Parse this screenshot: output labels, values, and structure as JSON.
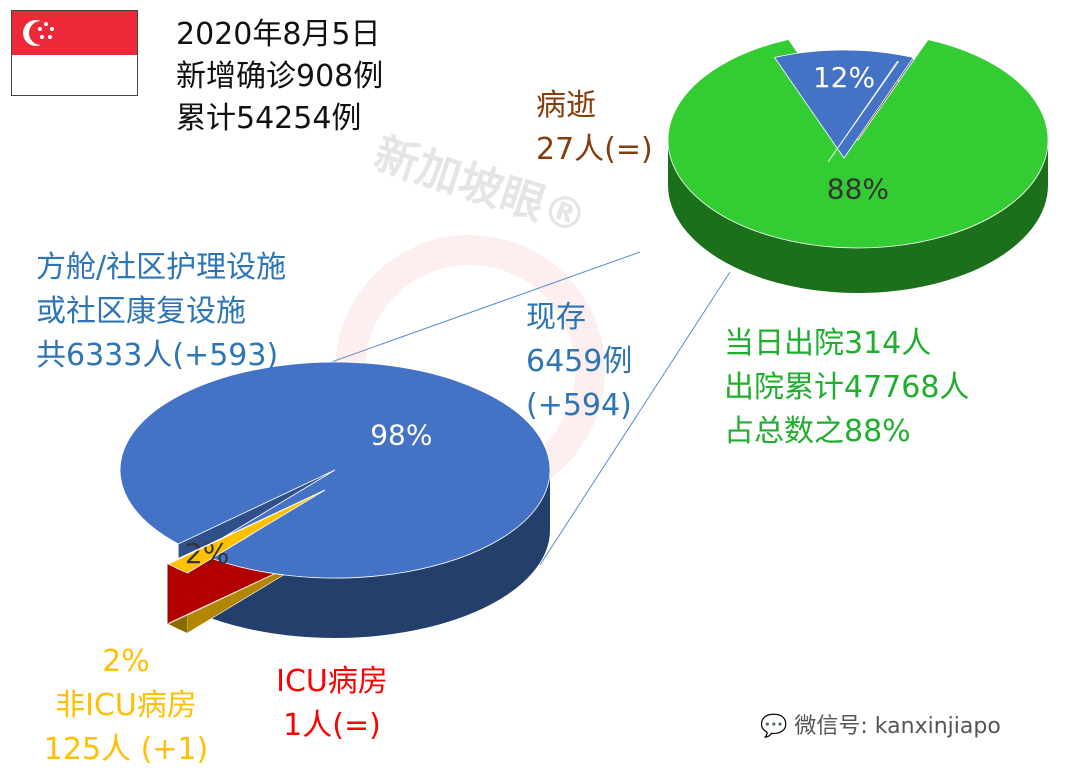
{
  "header": {
    "date": "2020年8月5日",
    "new_cases": "新增确诊908例",
    "total_cases": "累计54254例"
  },
  "flag_icon": "singapore-flag",
  "watermark": "新加坡眼®",
  "labels": {
    "deaths": [
      "病逝",
      "27人(=)"
    ],
    "community": [
      "方舱/社区护理设施",
      "或社区康复设施",
      "共6333人(+593)"
    ],
    "current": [
      "现存",
      "6459例",
      "(+594)"
    ],
    "discharged": [
      "当日出院314人",
      "出院累计47768人",
      "占总数之88%"
    ],
    "non_icu": [
      "2%",
      "非ICU病房",
      "125人 (+1)"
    ],
    "icu": [
      "ICU病房",
      "1人(=)"
    ]
  },
  "footer": {
    "wechat_icon": "wechat-icon",
    "text": "微信号: kanxinjiapo"
  },
  "colors": {
    "green": "#33cc33",
    "blue": "#4472c4",
    "brown": "#7b3f12",
    "yellow": "#ffc000",
    "red": "#ff0000",
    "community_text": "#2e75b6",
    "discharged_text": "#1fae2e"
  },
  "chart_data": [
    {
      "type": "pie",
      "style": "3d-exploded",
      "categories": [
        "出院",
        "现存",
        "病逝"
      ],
      "values": [
        47768,
        6459,
        27
      ],
      "data_labels": [
        "88%",
        "12%",
        ""
      ],
      "colors": [
        "#33cc33",
        "#4472c4",
        "#7b3f12"
      ]
    },
    {
      "type": "pie",
      "style": "3d-exploded",
      "categories": [
        "方舱/社区护理设施或社区康复设施",
        "非ICU病房",
        "ICU病房"
      ],
      "values": [
        6333,
        125,
        1
      ],
      "data_labels": [
        "98%",
        "2%",
        ""
      ],
      "colors": [
        "#4472c4",
        "#ffc000",
        "#ff0000"
      ]
    }
  ]
}
